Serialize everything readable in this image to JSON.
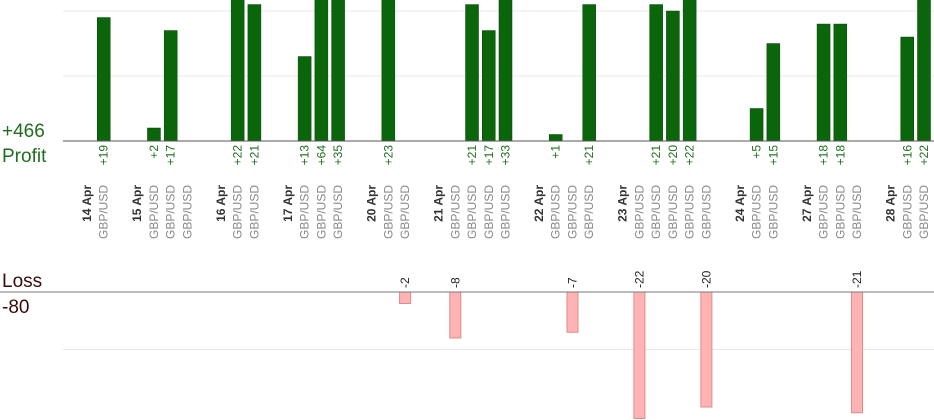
{
  "chart_data": {
    "type": "bar",
    "profit_total": {
      "value": 466,
      "label": "+466"
    },
    "profit_label": "Profit",
    "loss_label": "Loss",
    "loss_total": -80,
    "profit_color": "#0b650b",
    "loss_color": "#ffb3b3",
    "ylim": [
      0,
      21.7
    ],
    "yticks": [
      10,
      20
    ],
    "y2lim": [
      0,
      -20
    ],
    "y2ticks": [
      -10
    ],
    "grid": true,
    "groups": [
      {
        "date": "14 Apr",
        "trades": [
          {
            "pair": "GBP/USD",
            "value": 19,
            "label": "+19"
          }
        ]
      },
      {
        "date": "15 Apr",
        "trades": [
          {
            "pair": "GBP/USD",
            "value": 2,
            "label": "+2"
          },
          {
            "pair": "GBP/USD",
            "value": 17,
            "label": "+17"
          },
          {
            "pair": "GBP/USD",
            "value": null,
            "label": null
          }
        ]
      },
      {
        "date": "16 Apr",
        "trades": [
          {
            "pair": "GBP/USD",
            "value": 22,
            "label": "+22"
          },
          {
            "pair": "GBP/USD",
            "value": 21,
            "label": "+21"
          }
        ]
      },
      {
        "date": "17 Apr",
        "trades": [
          {
            "pair": "GBP/USD",
            "value": 13,
            "label": "+13"
          },
          {
            "pair": "GBP/USD",
            "value": 64,
            "label": "+64"
          },
          {
            "pair": "GBP/USD",
            "value": 35,
            "label": "+35"
          }
        ]
      },
      {
        "date": "20 Apr",
        "trades": [
          {
            "pair": "GBP/USD",
            "value": 23,
            "label": "+23"
          },
          {
            "pair": "GBP/USD",
            "value": -2,
            "label": "-2"
          }
        ]
      },
      {
        "date": "21 Apr",
        "trades": [
          {
            "pair": "GBP/USD",
            "value": -8,
            "label": "-8"
          },
          {
            "pair": "GBP/USD",
            "value": 21,
            "label": "+21"
          },
          {
            "pair": "GBP/USD",
            "value": 17,
            "label": "+17"
          },
          {
            "pair": "GBP/USD",
            "value": 33,
            "label": "+33"
          }
        ]
      },
      {
        "date": "22 Apr",
        "trades": [
          {
            "pair": "GBP/USD",
            "value": 1,
            "label": "+1"
          },
          {
            "pair": "GBP/USD",
            "value": -7,
            "label": "-7"
          },
          {
            "pair": "GBP/USD",
            "value": 21,
            "label": "+21"
          }
        ]
      },
      {
        "date": "23 Apr",
        "trades": [
          {
            "pair": "GBP/USD",
            "value": -22,
            "label": "-22"
          },
          {
            "pair": "GBP/USD",
            "value": 21,
            "label": "+21"
          },
          {
            "pair": "GBP/USD",
            "value": 20,
            "label": "+20"
          },
          {
            "pair": "GBP/USD",
            "value": 22,
            "label": "+22"
          },
          {
            "pair": "GBP/USD",
            "value": -20,
            "label": "-20"
          }
        ]
      },
      {
        "date": "24 Apr",
        "trades": [
          {
            "pair": "GBP/USD",
            "value": 5,
            "label": "+5"
          },
          {
            "pair": "GBP/USD",
            "value": 15,
            "label": "+15"
          }
        ]
      },
      {
        "date": "27 Apr",
        "trades": [
          {
            "pair": "GBP/USD",
            "value": 18,
            "label": "+18"
          },
          {
            "pair": "GBP/USD",
            "value": 18,
            "label": "+18"
          },
          {
            "pair": "GBP/USD",
            "value": -21,
            "label": "-21"
          }
        ]
      },
      {
        "date": "28 Apr",
        "trades": [
          {
            "pair": "GBP/USD",
            "value": 16,
            "label": "+16"
          },
          {
            "pair": "GBP/USD",
            "value": 22,
            "label": "+22"
          }
        ]
      }
    ]
  }
}
